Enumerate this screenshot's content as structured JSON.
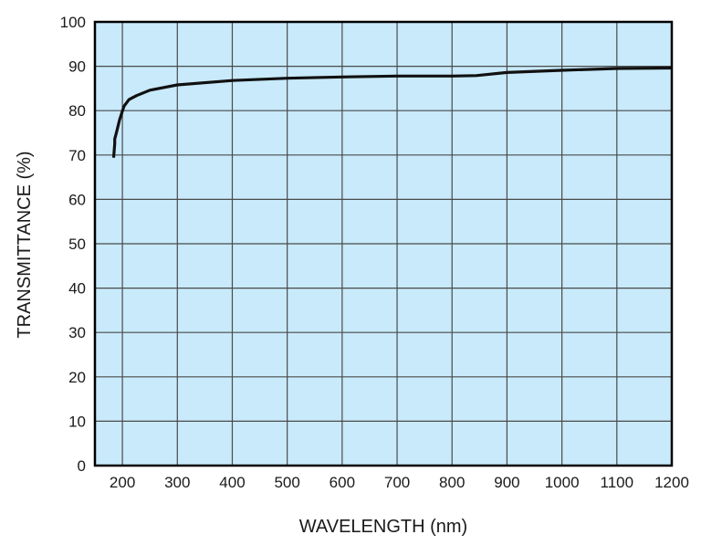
{
  "chart_data": {
    "type": "line",
    "title": "",
    "xlabel": "WAVELENGTH (nm)",
    "ylabel": "TRANSMITTANCE (%)",
    "xlim": [
      150,
      1200
    ],
    "ylim": [
      0,
      100
    ],
    "x_ticks": [
      200,
      300,
      400,
      500,
      600,
      700,
      800,
      900,
      1000,
      1100,
      1200
    ],
    "y_ticks": [
      0,
      10,
      20,
      30,
      40,
      50,
      60,
      70,
      80,
      90,
      100
    ],
    "grid": true,
    "colors": {
      "plot_background": "#c8eafb",
      "grid": "#4a4a4a",
      "line": "#111111"
    },
    "series": [
      {
        "x": [
          184,
          186,
          186,
          190,
          195,
          203,
          212,
          226,
          250,
          300,
          400,
          500,
          600,
          700,
          800,
          844,
          900,
          1000,
          1100,
          1200
        ],
        "y": [
          69.4,
          72.6,
          73.6,
          75.5,
          78,
          81,
          82.5,
          83.4,
          84.6,
          85.8,
          86.8,
          87.3,
          87.6,
          87.8,
          87.8,
          87.9,
          88.6,
          89.1,
          89.5,
          89.6
        ]
      }
    ]
  }
}
